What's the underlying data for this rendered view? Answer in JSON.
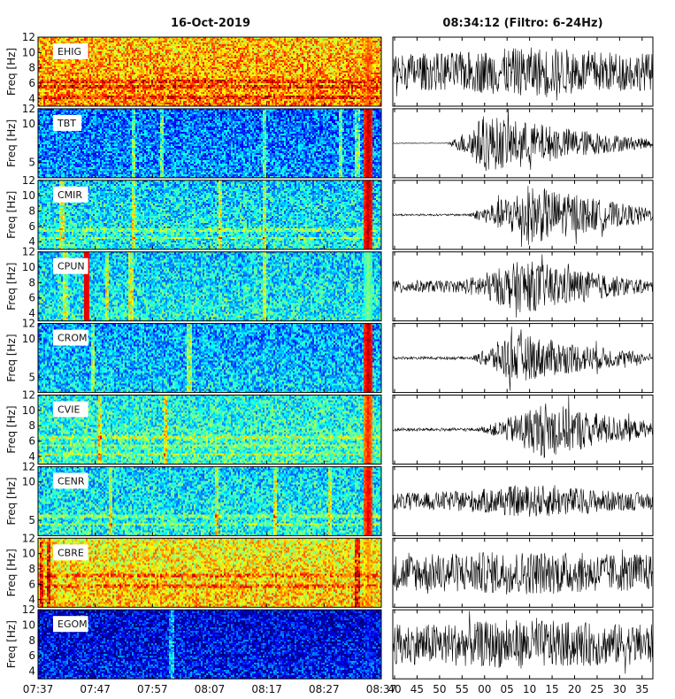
{
  "left_title": "16-Oct-2019",
  "right_title": "08:34:12  (Filtro: 6-24Hz)",
  "colors": {
    "frame": "#000000",
    "wave": "#000000"
  },
  "chart_data": [
    {
      "type": "heatmap",
      "kind": "spectrogram",
      "ylabel": "Freq [Hz]",
      "x_tick_labels": [
        "07:37",
        "07:47",
        "07:57",
        "08:07",
        "08:17",
        "08:27",
        "08:37"
      ],
      "panels": [
        {
          "station": "EHIG",
          "y_ticks": [
            "12",
            "10",
            "8",
            "6",
            "4"
          ],
          "ylim": [
            3,
            12
          ],
          "base_level": 0.68,
          "event_level": 0.78,
          "vertical_bands": [],
          "horizontal_bands": [
            6.2,
            5.5,
            4.2
          ]
        },
        {
          "station": "TBT",
          "y_ticks": [
            "12",
            "10",
            "5"
          ],
          "ylim": [
            3,
            12
          ],
          "base_level": 0.22,
          "event_level": 0.95,
          "vertical_bands": [
            0.28,
            0.36,
            0.66,
            0.88,
            0.93
          ],
          "horizontal_bands": []
        },
        {
          "station": "CMIR",
          "y_ticks": [
            "12",
            "10",
            "8",
            "6",
            "4"
          ],
          "ylim": [
            3,
            12
          ],
          "base_level": 0.33,
          "event_level": 0.95,
          "vertical_bands": [
            0.07,
            0.28,
            0.53,
            0.66
          ],
          "horizontal_bands": [
            5.5,
            4.5
          ]
        },
        {
          "station": "CPUN",
          "y_ticks": [
            "12",
            "10",
            "8",
            "6",
            "4"
          ],
          "ylim": [
            3,
            12
          ],
          "base_level": 0.33,
          "event_level": 0.5,
          "vertical_bands": [
            0.08,
            0.2,
            0.27,
            0.66
          ],
          "horizontal_bands": [],
          "special_event": 0.14
        },
        {
          "station": "CROM",
          "y_ticks": [
            "12",
            "10",
            "5"
          ],
          "ylim": [
            3,
            12
          ],
          "base_level": 0.28,
          "event_level": 0.95,
          "vertical_bands": [
            0.16,
            0.44
          ],
          "horizontal_bands": []
        },
        {
          "station": "CVIE",
          "y_ticks": [
            "12",
            "10",
            "8",
            "6",
            "4"
          ],
          "ylim": [
            3,
            12
          ],
          "base_level": 0.38,
          "event_level": 0.85,
          "vertical_bands": [
            0.18,
            0.37
          ],
          "horizontal_bands": [
            6.5,
            5.4,
            4.3
          ]
        },
        {
          "station": "CENR",
          "y_ticks": [
            "12",
            "10",
            "5"
          ],
          "ylim": [
            3,
            12
          ],
          "base_level": 0.34,
          "event_level": 0.9,
          "vertical_bands": [
            0.21,
            0.52,
            0.69,
            0.85
          ],
          "horizontal_bands": [
            4.5,
            5.5
          ]
        },
        {
          "station": "CBRE",
          "y_ticks": [
            "12",
            "10",
            "8",
            "6",
            "4"
          ],
          "ylim": [
            3,
            12
          ],
          "base_level": 0.62,
          "event_level": 0.72,
          "vertical_bands": [
            0.01,
            0.03,
            0.93
          ],
          "horizontal_bands": [
            7.2,
            5.8
          ]
        },
        {
          "station": "EGOM",
          "y_ticks": [
            "12",
            "10",
            "8",
            "6",
            "4"
          ],
          "ylim": [
            3,
            12
          ],
          "base_level": 0.08,
          "event_level": 0.12,
          "vertical_bands": [
            0.39
          ],
          "horizontal_bands": []
        }
      ],
      "event_time_fraction": 0.962
    },
    {
      "type": "line",
      "kind": "seismogram",
      "x_tick_labels": [
        "40",
        "45",
        "50",
        "55",
        "00",
        "05",
        "10",
        "15",
        "20",
        "25",
        "30",
        "35"
      ],
      "traces": [
        {
          "station": "EHIG",
          "noise": 0.55,
          "peak_amp": 0.9,
          "onset": 0.0,
          "peak": 0.55,
          "decay": 0.0
        },
        {
          "station": "TBT",
          "noise": 0.01,
          "peak_amp": 0.85,
          "onset": 0.2,
          "peak": 0.35,
          "decay": 0.95
        },
        {
          "station": "CMIR",
          "noise": 0.03,
          "peak_amp": 0.9,
          "onset": 0.26,
          "peak": 0.52,
          "decay": 0.95
        },
        {
          "station": "CPUN",
          "noise": 0.18,
          "peak_amp": 0.8,
          "onset": 0.14,
          "peak": 0.5,
          "decay": 0.95
        },
        {
          "station": "CROM",
          "noise": 0.04,
          "peak_amp": 0.75,
          "onset": 0.28,
          "peak": 0.45,
          "decay": 0.95
        },
        {
          "station": "CVIE",
          "noise": 0.05,
          "peak_amp": 0.85,
          "onset": 0.3,
          "peak": 0.58,
          "decay": 0.95
        },
        {
          "station": "CENR",
          "noise": 0.25,
          "peak_amp": 0.7,
          "onset": 0.0,
          "peak": 0.55,
          "decay": 0.0
        },
        {
          "station": "CBRE",
          "noise": 0.55,
          "peak_amp": 0.75,
          "onset": 0.0,
          "peak": 0.5,
          "decay": 0.0
        },
        {
          "station": "EGOM",
          "noise": 0.6,
          "peak_amp": 0.85,
          "onset": 0.0,
          "peak": 0.5,
          "decay": 0.0
        }
      ]
    }
  ]
}
